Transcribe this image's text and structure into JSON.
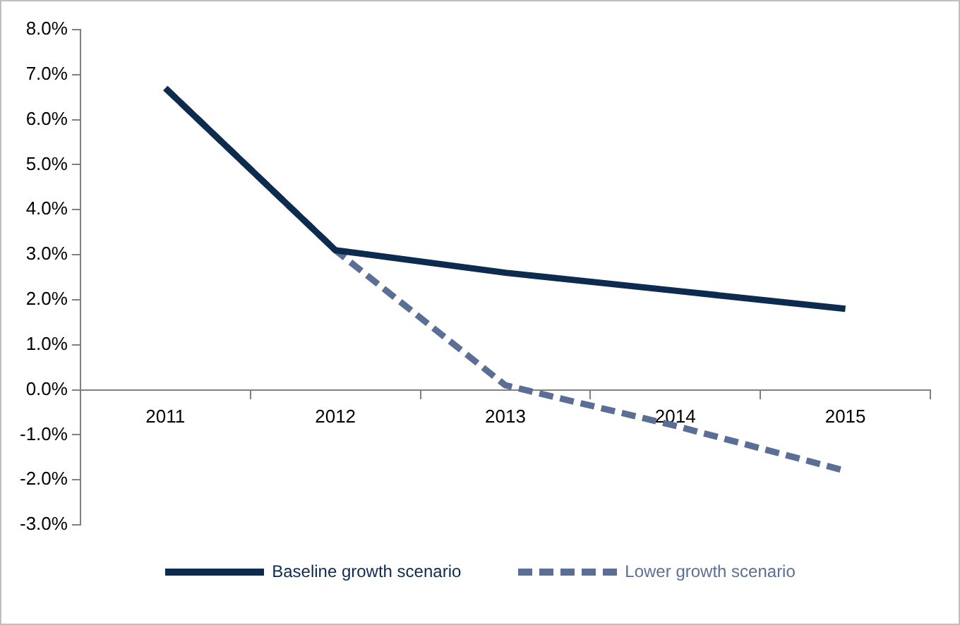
{
  "chart_data": {
    "type": "line",
    "categories": [
      "2011",
      "2012",
      "2013",
      "2014",
      "2015"
    ],
    "series": [
      {
        "name": "Baseline growth scenario",
        "color": "#0d2a4f",
        "line_style": "solid",
        "values": [
          6.7,
          3.1,
          2.6,
          2.2,
          1.8
        ]
      },
      {
        "name": "Lower growth scenario",
        "color": "#5b6f96",
        "line_style": "dashed",
        "values": [
          6.7,
          3.1,
          0.1,
          -0.8,
          -1.8
        ]
      }
    ],
    "ylim": [
      -3,
      8
    ],
    "yticks": [
      {
        "value": -3,
        "label": "-3.0%"
      },
      {
        "value": -2,
        "label": "-2.0%"
      },
      {
        "value": -1,
        "label": "-1.0%"
      },
      {
        "value": 0,
        "label": "0.0%"
      },
      {
        "value": 1,
        "label": "1.0%"
      },
      {
        "value": 2,
        "label": "2.0%"
      },
      {
        "value": 3,
        "label": "3.0%"
      },
      {
        "value": 4,
        "label": "4.0%"
      },
      {
        "value": 5,
        "label": "5.0%"
      },
      {
        "value": 6,
        "label": "6.0%"
      },
      {
        "value": 7,
        "label": "7.0%"
      },
      {
        "value": 8,
        "label": "8.0%"
      }
    ],
    "grid": false,
    "legend": "bottom",
    "marker": "none"
  }
}
